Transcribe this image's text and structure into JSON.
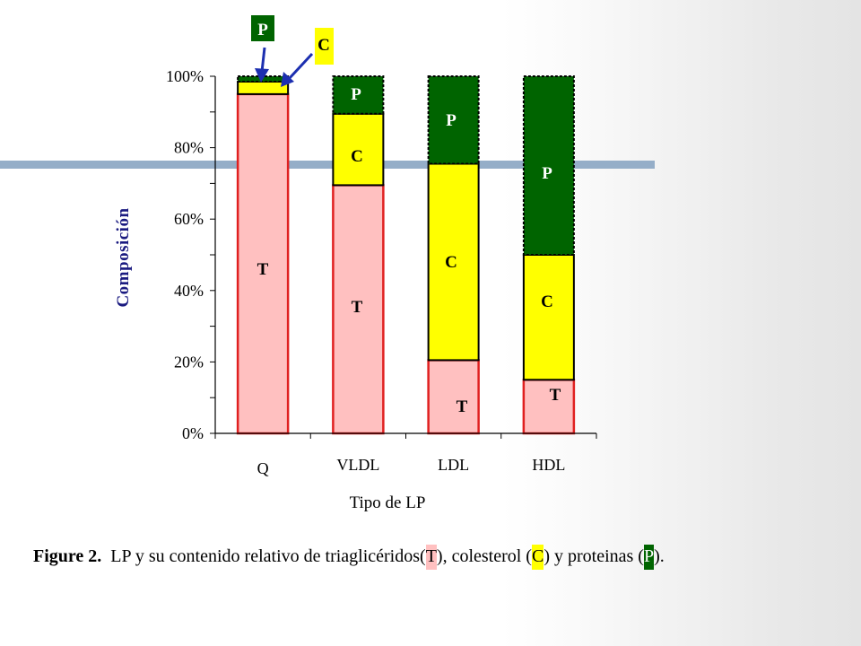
{
  "colors": {
    "T": "#ffc0c0",
    "T_border": "#e02020",
    "C": "#ffff00",
    "P": "#006400",
    "axis_label": "#1a1a80",
    "band": "#95aec8"
  },
  "chart_data": {
    "type": "bar",
    "stacked": true,
    "categories": [
      "Q",
      "VLDL",
      "LDL",
      "HDL"
    ],
    "series": [
      {
        "key": "T",
        "values": [
          95,
          69.5,
          20.5,
          15
        ]
      },
      {
        "key": "C",
        "values": [
          3.5,
          20,
          55,
          35
        ]
      },
      {
        "key": "P",
        "values": [
          1.5,
          10.5,
          24.5,
          50
        ]
      }
    ],
    "ylim": [
      0,
      100
    ],
    "yticks": [
      "0%",
      "20%",
      "40%",
      "60%",
      "80%",
      "100%"
    ],
    "ylabel": "Composición",
    "xlabel": "Tipo de LP",
    "grid": false,
    "segment_labels": {
      "T": "T",
      "C": "C",
      "P": "P"
    },
    "callouts": {
      "P": "P",
      "C": "C"
    }
  },
  "caption": {
    "prefix": "Figure 2.",
    "text1": "LP y su contenido relativo de  triaglicéridos(",
    "T": "T",
    "text2": "), colesterol (",
    "C": "C",
    "text3": ") y proteinas (",
    "P": "P",
    "text4": ")."
  }
}
